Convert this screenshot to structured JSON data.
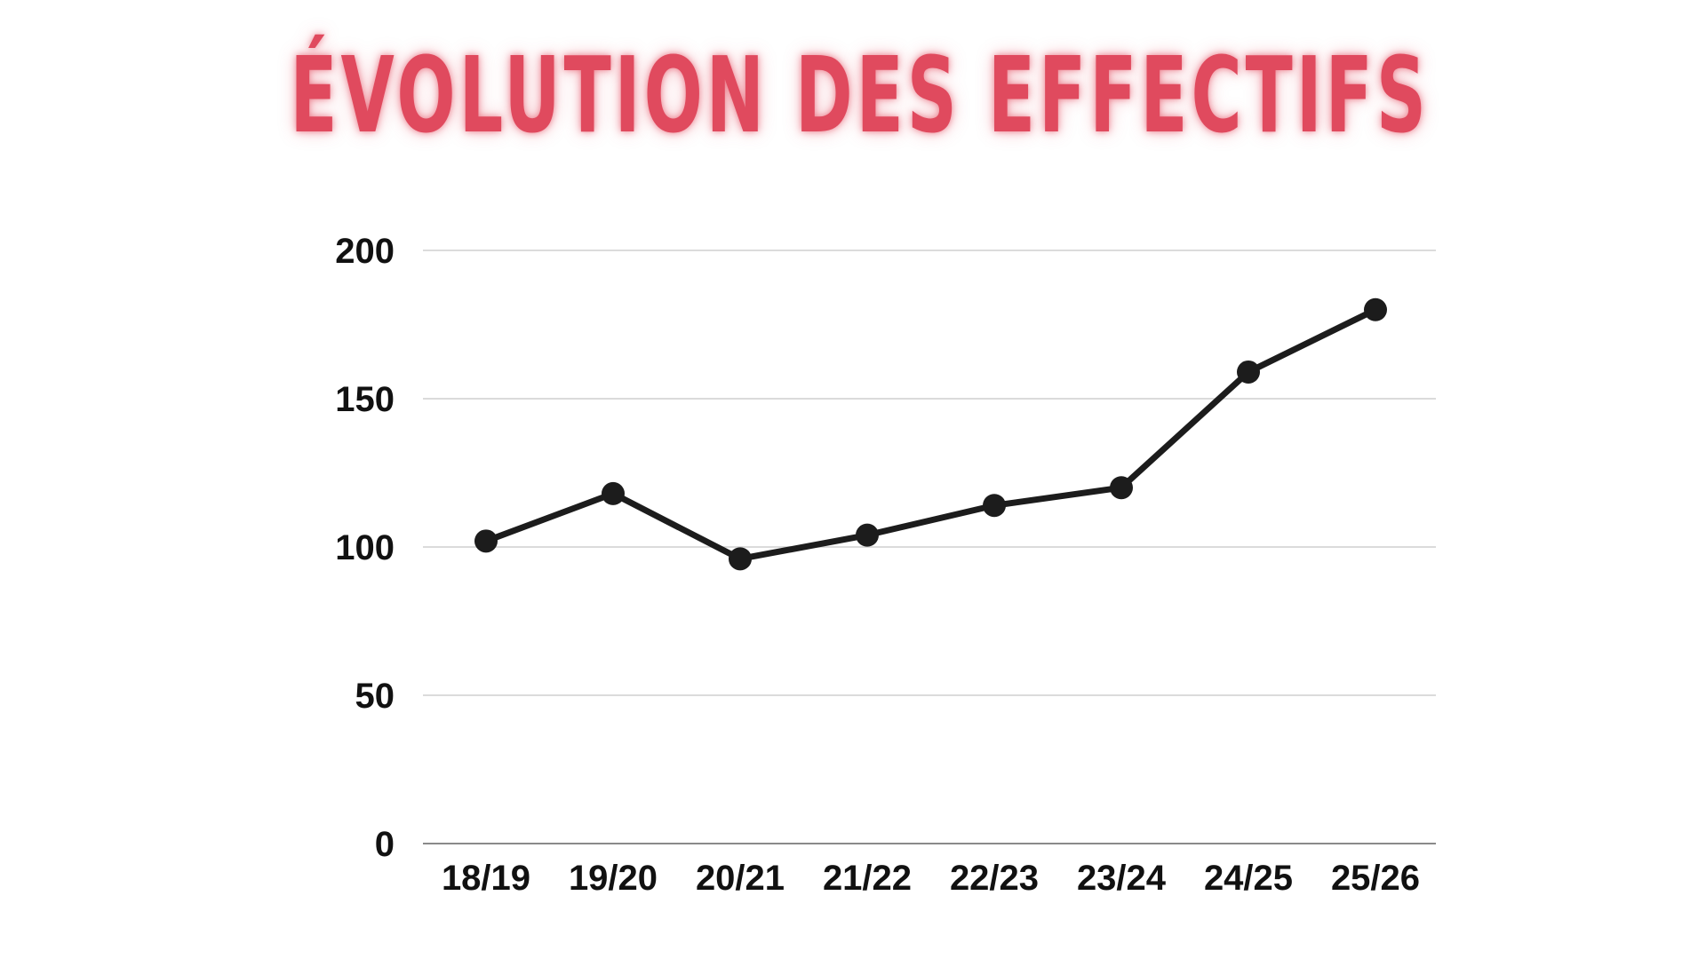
{
  "colors": {
    "title": "#e04a5e",
    "line": "#1c1c1c",
    "grid": "#cfcfcf",
    "axis": "#8a8a8a"
  },
  "chart_data": {
    "type": "line",
    "title": "ÉVOLUTION DES EFFECTIFS",
    "xlabel": "",
    "ylabel": "",
    "categories": [
      "18/19",
      "19/20",
      "20/21",
      "21/22",
      "22/23",
      "23/24",
      "24/25",
      "25/26"
    ],
    "series": [
      {
        "values": [
          102,
          118,
          96,
          104,
          114,
          120,
          159,
          180
        ]
      }
    ],
    "ylim": [
      0,
      200
    ],
    "yticks": [
      "0",
      "50",
      "100",
      "150",
      "200"
    ],
    "grid": true,
    "legend": "none"
  }
}
